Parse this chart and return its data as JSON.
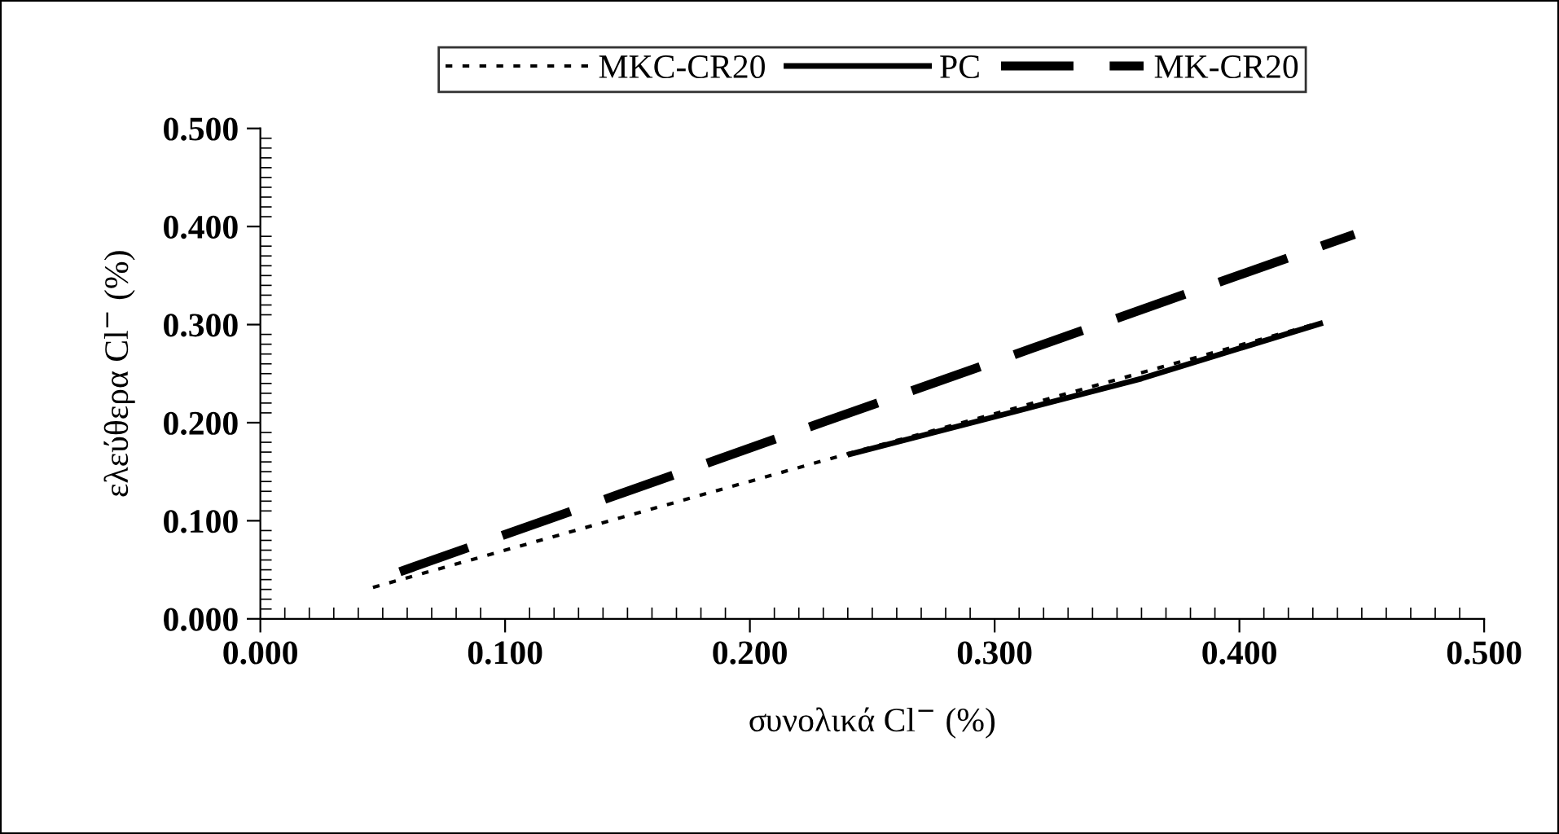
{
  "chart_data": {
    "type": "line",
    "xlabel": "συνολικά Cl$^{−}$ (%)",
    "ylabel": "ελεύθερα Cl$^{−}$ (%)",
    "series": [
      {
        "name": "MKC-CR20",
        "color": "#000000",
        "line_style": "dotted",
        "x": [
          0.046,
          0.241,
          0.3,
          0.433
        ],
        "values": [
          0.032,
          0.169,
          0.209,
          0.302
        ]
      },
      {
        "name": "PC",
        "color": "#000000",
        "line_style": "solid",
        "x": [
          0.241,
          0.3,
          0.36,
          0.433
        ],
        "values": [
          0.168,
          0.206,
          0.245,
          0.301
        ]
      },
      {
        "name": "MK-CR20",
        "color": "#000000",
        "line_style": "dashed",
        "x": [
          0.057,
          0.447
        ],
        "values": [
          0.048,
          0.392
        ]
      }
    ],
    "xlim": [
      0,
      0.5
    ],
    "ylim": [
      0,
      0.5
    ],
    "xticks": [
      {
        "value": 0,
        "label": "0.000"
      },
      {
        "value": 0.1,
        "label": "0.100"
      },
      {
        "value": 0.2,
        "label": "0.200"
      },
      {
        "value": 0.3,
        "label": "0.300"
      },
      {
        "value": 0.4,
        "label": "0.400"
      },
      {
        "value": 0.5,
        "label": "0.500"
      }
    ],
    "yticks": [
      {
        "value": 0,
        "label": "0.000"
      },
      {
        "value": 0.1,
        "label": "0.100"
      },
      {
        "value": 0.2,
        "label": "0.200"
      },
      {
        "value": 0.3,
        "label": "0.300"
      },
      {
        "value": 0.4,
        "label": "0.400"
      },
      {
        "value": 0.5,
        "label": "0.500"
      }
    ],
    "grid": false,
    "legend": "top",
    "marker": "none"
  }
}
